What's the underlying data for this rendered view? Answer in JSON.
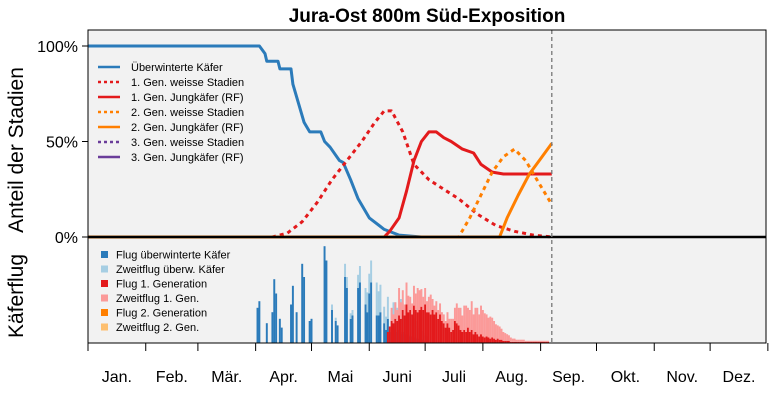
{
  "chart_data": {
    "type": "line",
    "title": "Jura-Ost 800m Süd-Exposition",
    "ylabel_top": "Anteil der Stadien",
    "ylabel_bottom": "Käferflug",
    "y_ticks": [
      "100%",
      "50%",
      "0%"
    ],
    "y_tick_values": [
      100,
      50,
      0
    ],
    "ylim": [
      0,
      110
    ],
    "months": [
      "Jan.",
      "Feb.",
      "Mär.",
      "Apr.",
      "Mai",
      "Juni",
      "Juli",
      "Aug.",
      "Sep.",
      "Okt.",
      "Nov.",
      "Dez."
    ],
    "x_unit": "day of year",
    "xlim": [
      1,
      365
    ],
    "current_day": 250,
    "legend_top_position": "top-left",
    "legend_bottom_position": "bottom-left",
    "series": [
      {
        "name": "Überwinterte Käfer",
        "color": "#2b7bba",
        "dash": "solid",
        "x": [
          1,
          70,
          93,
          96,
          97,
          103,
          104,
          110,
          111,
          114,
          117,
          120,
          123,
          126,
          128,
          131,
          136,
          138,
          142,
          146,
          152,
          160,
          168,
          180
        ],
        "y": [
          100,
          100,
          100,
          96,
          92,
          92,
          88,
          88,
          80,
          70,
          60,
          55,
          55,
          55,
          50,
          47,
          40,
          39,
          30,
          20,
          10,
          4,
          1,
          0
        ]
      },
      {
        "name": "1. Gen. weisse Stadien",
        "color": "#e31a1c",
        "dash": "dotted",
        "x": [
          1,
          100,
          108,
          116,
          124,
          132,
          140,
          148,
          155,
          160,
          164,
          170,
          176,
          184,
          192,
          200,
          210,
          220,
          230,
          240,
          250
        ],
        "y": [
          0,
          0,
          2,
          8,
          18,
          30,
          40,
          50,
          60,
          66,
          66,
          55,
          38,
          30,
          25,
          20,
          12,
          6,
          3,
          1,
          0
        ]
      },
      {
        "name": "1. Gen. Jungkäfer (RF)",
        "color": "#e31a1c",
        "dash": "solid",
        "x": [
          1,
          160,
          163,
          168,
          172,
          176,
          180,
          184,
          188,
          192,
          196,
          202,
          208,
          212,
          218,
          224,
          234,
          250
        ],
        "y": [
          0,
          0,
          3,
          10,
          24,
          40,
          50,
          55,
          55,
          52,
          50,
          46,
          44,
          38,
          34,
          33,
          33,
          33
        ]
      },
      {
        "name": "2. Gen. weisse Stadien",
        "color": "#ff7f00",
        "dash": "dotted",
        "x": [
          1,
          200,
          206,
          212,
          218,
          224,
          230,
          236,
          242,
          250
        ],
        "y": [
          0,
          0,
          10,
          22,
          34,
          42,
          46,
          40,
          30,
          17
        ]
      },
      {
        "name": "2. Gen. Jungkäfer (RF)",
        "color": "#ff7f00",
        "dash": "solid",
        "x": [
          1,
          222,
          226,
          232,
          238,
          244,
          250
        ],
        "y": [
          0,
          0,
          10,
          22,
          33,
          41,
          49
        ]
      },
      {
        "name": "3. Gen. weisse Stadien",
        "color": "#6a3d9a",
        "dash": "dotted",
        "x": [],
        "y": []
      },
      {
        "name": "3. Gen. Jungkäfer (RF)",
        "color": "#6a3d9a",
        "dash": "solid",
        "x": [],
        "y": []
      }
    ],
    "flight_series": [
      {
        "name": "Flug überwinterte Käfer",
        "color": "#2b7bba"
      },
      {
        "name": "Zweitflug überw. Käfer",
        "color": "#a6cee3"
      },
      {
        "name": "Flug 1. Generation",
        "color": "#e31a1c"
      },
      {
        "name": "Zweitflug 1. Gen.",
        "color": "#fb9a99"
      },
      {
        "name": "Flug 2. Generation",
        "color": "#ff7f00"
      },
      {
        "name": "Zweitflug 2. Gen.",
        "color": "#fdbf6f"
      }
    ],
    "flight_bars": [
      {
        "day": 92,
        "v": 32,
        "s": 0
      },
      {
        "day": 93,
        "v": 38,
        "s": 0
      },
      {
        "day": 97,
        "v": 18,
        "s": 0
      },
      {
        "day": 100,
        "v": 28,
        "s": 0
      },
      {
        "day": 101,
        "v": 58,
        "s": 0
      },
      {
        "day": 102,
        "v": 45,
        "s": 0
      },
      {
        "day": 104,
        "v": 22,
        "s": 0
      },
      {
        "day": 105,
        "v": 14,
        "s": 0
      },
      {
        "day": 110,
        "v": 35,
        "s": 0
      },
      {
        "day": 111,
        "v": 52,
        "s": 0
      },
      {
        "day": 113,
        "v": 28,
        "s": 0
      },
      {
        "day": 116,
        "v": 72,
        "s": 0
      },
      {
        "day": 117,
        "v": 60,
        "s": 0
      },
      {
        "day": 120,
        "v": 20,
        "s": 0
      },
      {
        "day": 121,
        "v": 22,
        "s": 0
      },
      {
        "day": 128,
        "v": 88,
        "s": 0
      },
      {
        "day": 129,
        "v": 75,
        "s": 0
      },
      {
        "day": 132,
        "v": 30,
        "s": 5
      },
      {
        "day": 134,
        "v": 20,
        "s": 3
      },
      {
        "day": 135,
        "v": 16,
        "s": 0
      },
      {
        "day": 139,
        "v": 60,
        "s": 12
      },
      {
        "day": 140,
        "v": 50,
        "s": 10
      },
      {
        "day": 142,
        "v": 22,
        "s": 5
      },
      {
        "day": 143,
        "v": 25,
        "s": 5
      },
      {
        "day": 146,
        "v": 50,
        "s": 12
      },
      {
        "day": 147,
        "v": 55,
        "s": 15
      },
      {
        "day": 150,
        "v": 35,
        "s": 15
      },
      {
        "day": 151,
        "v": 28,
        "s": 18
      },
      {
        "day": 152,
        "v": 45,
        "s": 18
      },
      {
        "day": 153,
        "v": 55,
        "s": 20
      },
      {
        "day": 156,
        "v": 25,
        "s": 30
      },
      {
        "day": 157,
        "v": 25,
        "s": 22
      },
      {
        "day": 158,
        "v": 28,
        "s": 25
      },
      {
        "day": 160,
        "v": 18,
        "s": 15
      },
      {
        "day": 161,
        "v": 12,
        "s": 12
      },
      {
        "day": 162,
        "v": 22,
        "s": 20
      },
      {
        "day": 164,
        "v": 10,
        "s": 20
      },
      {
        "day": 165,
        "v": 15,
        "s": 22
      },
      {
        "day": 166,
        "v": 12,
        "s": 25
      },
      {
        "day": 167,
        "v": 10,
        "s": 22
      },
      {
        "day": 168,
        "v": 12,
        "s": 18
      },
      {
        "day": 169,
        "v": 10,
        "s": 30
      },
      {
        "day": 170,
        "v": 8,
        "s": 28
      },
      {
        "day": 171,
        "v": 10,
        "s": 24
      },
      {
        "day": 172,
        "v": 8,
        "s": 32
      },
      {
        "day": 173,
        "v": 7,
        "s": 20
      },
      {
        "day": 174,
        "v": 6,
        "s": 28
      },
      {
        "day": 175,
        "v": 6,
        "s": 22
      },
      {
        "day": 176,
        "v": 5,
        "s": 18
      },
      {
        "day": 177,
        "v": 5,
        "s": 15
      },
      {
        "day": 178,
        "v": 4,
        "s": 12
      },
      {
        "day": 179,
        "v": 4,
        "s": 10
      },
      {
        "day": 180,
        "v": 3,
        "s": 8
      },
      {
        "day": 181,
        "v": 3,
        "s": 6
      },
      {
        "day": 182,
        "v": 2,
        "s": 5
      },
      {
        "day": 183,
        "v": 2,
        "s": 4
      }
    ],
    "gen1_bars": [
      {
        "day": 162,
        "v": 10,
        "s": 0
      },
      {
        "day": 163,
        "v": 15,
        "s": 0
      },
      {
        "day": 164,
        "v": 20,
        "s": 12
      },
      {
        "day": 165,
        "v": 18,
        "s": 8
      },
      {
        "day": 166,
        "v": 22,
        "s": 15
      },
      {
        "day": 167,
        "v": 20,
        "s": 10
      },
      {
        "day": 168,
        "v": 25,
        "s": 25
      },
      {
        "day": 169,
        "v": 22,
        "s": 15
      },
      {
        "day": 170,
        "v": 30,
        "s": 18
      },
      {
        "day": 171,
        "v": 25,
        "s": 10
      },
      {
        "day": 172,
        "v": 35,
        "s": 20
      },
      {
        "day": 173,
        "v": 28,
        "s": 15
      },
      {
        "day": 174,
        "v": 30,
        "s": 12
      },
      {
        "day": 175,
        "v": 26,
        "s": 10
      },
      {
        "day": 176,
        "v": 34,
        "s": 18
      },
      {
        "day": 177,
        "v": 30,
        "s": 15
      },
      {
        "day": 178,
        "v": 28,
        "s": 22
      },
      {
        "day": 179,
        "v": 30,
        "s": 18
      },
      {
        "day": 180,
        "v": 33,
        "s": 16
      },
      {
        "day": 181,
        "v": 30,
        "s": 12
      },
      {
        "day": 182,
        "v": 35,
        "s": 15
      },
      {
        "day": 183,
        "v": 28,
        "s": 10
      },
      {
        "day": 184,
        "v": 28,
        "s": 14
      },
      {
        "day": 185,
        "v": 26,
        "s": 18
      },
      {
        "day": 186,
        "v": 30,
        "s": 10
      },
      {
        "day": 187,
        "v": 26,
        "s": 8
      },
      {
        "day": 188,
        "v": 28,
        "s": 10
      },
      {
        "day": 189,
        "v": 22,
        "s": 8
      },
      {
        "day": 190,
        "v": 26,
        "s": 10
      },
      {
        "day": 191,
        "v": 20,
        "s": 8
      },
      {
        "day": 192,
        "v": 18,
        "s": 8
      },
      {
        "day": 193,
        "v": 14,
        "s": 6
      },
      {
        "day": 194,
        "v": 18,
        "s": 10
      },
      {
        "day": 195,
        "v": 14,
        "s": 8
      },
      {
        "day": 196,
        "v": 10,
        "s": 12
      },
      {
        "day": 197,
        "v": 12,
        "s": 10
      },
      {
        "day": 198,
        "v": 20,
        "s": 12
      },
      {
        "day": 199,
        "v": 18,
        "s": 18
      },
      {
        "day": 200,
        "v": 16,
        "s": 16
      },
      {
        "day": 201,
        "v": 12,
        "s": 20
      },
      {
        "day": 202,
        "v": 10,
        "s": 15
      },
      {
        "day": 203,
        "v": 12,
        "s": 22
      },
      {
        "day": 204,
        "v": 10,
        "s": 24
      },
      {
        "day": 205,
        "v": 14,
        "s": 18
      },
      {
        "day": 206,
        "v": 10,
        "s": 20
      },
      {
        "day": 207,
        "v": 12,
        "s": 26
      },
      {
        "day": 208,
        "v": 8,
        "s": 18
      },
      {
        "day": 209,
        "v": 10,
        "s": 22
      },
      {
        "day": 210,
        "v": 8,
        "s": 24
      },
      {
        "day": 211,
        "v": 6,
        "s": 20
      },
      {
        "day": 212,
        "v": 8,
        "s": 26
      },
      {
        "day": 213,
        "v": 6,
        "s": 24
      },
      {
        "day": 214,
        "v": 5,
        "s": 22
      },
      {
        "day": 215,
        "v": 6,
        "s": 20
      },
      {
        "day": 216,
        "v": 5,
        "s": 18
      },
      {
        "day": 217,
        "v": 4,
        "s": 20
      },
      {
        "day": 218,
        "v": 5,
        "s": 18
      },
      {
        "day": 219,
        "v": 4,
        "s": 16
      },
      {
        "day": 220,
        "v": 3,
        "s": 14
      },
      {
        "day": 221,
        "v": 4,
        "s": 12
      },
      {
        "day": 222,
        "v": 3,
        "s": 12
      },
      {
        "day": 223,
        "v": 3,
        "s": 10
      },
      {
        "day": 224,
        "v": 2,
        "s": 8
      },
      {
        "day": 225,
        "v": 2,
        "s": 7
      },
      {
        "day": 226,
        "v": 2,
        "s": 6
      },
      {
        "day": 227,
        "v": 2,
        "s": 5
      },
      {
        "day": 228,
        "v": 1,
        "s": 4
      },
      {
        "day": 229,
        "v": 1,
        "s": 3
      },
      {
        "day": 230,
        "v": 1,
        "s": 3
      },
      {
        "day": 231,
        "v": 1,
        "s": 2
      },
      {
        "day": 232,
        "v": 1,
        "s": 2
      },
      {
        "day": 233,
        "v": 1,
        "s": 2
      },
      {
        "day": 234,
        "v": 1,
        "s": 2
      },
      {
        "day": 235,
        "v": 1,
        "s": 2
      },
      {
        "day": 236,
        "v": 1,
        "s": 1
      },
      {
        "day": 237,
        "v": 1,
        "s": 1
      },
      {
        "day": 238,
        "v": 1,
        "s": 1
      },
      {
        "day": 239,
        "v": 1,
        "s": 1
      },
      {
        "day": 240,
        "v": 1,
        "s": 1
      },
      {
        "day": 241,
        "v": 1,
        "s": 1
      },
      {
        "day": 242,
        "v": 1,
        "s": 1
      },
      {
        "day": 243,
        "v": 1,
        "s": 1
      },
      {
        "day": 244,
        "v": 1,
        "s": 1
      },
      {
        "day": 245,
        "v": 1,
        "s": 1
      },
      {
        "day": 246,
        "v": 1,
        "s": 1
      },
      {
        "day": 247,
        "v": 1,
        "s": 1
      },
      {
        "day": 248,
        "v": 1,
        "s": 1
      }
    ]
  }
}
